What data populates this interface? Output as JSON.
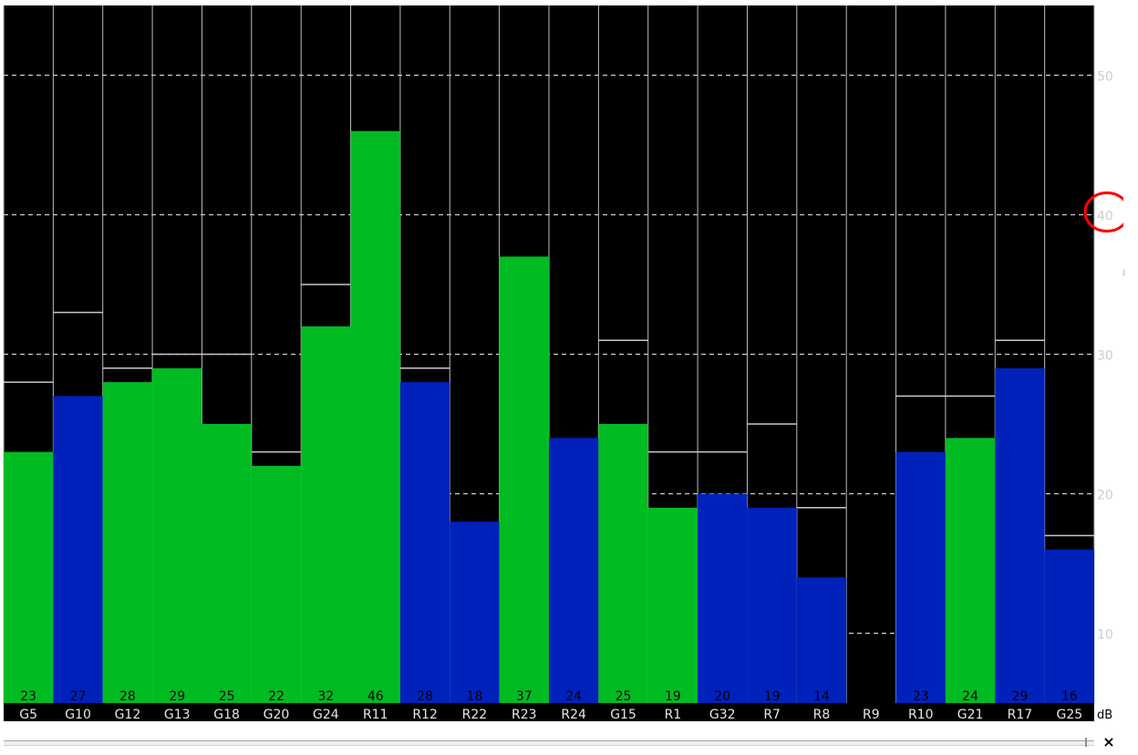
{
  "chart_data": {
    "type": "bar",
    "categories": [
      "G5",
      "G10",
      "G12",
      "G13",
      "G18",
      "G20",
      "G24",
      "R11",
      "R12",
      "R22",
      "R23",
      "R24",
      "G15",
      "R1",
      "G32",
      "R7",
      "R8",
      "R9",
      "R10",
      "G21",
      "R17",
      "G25"
    ],
    "values": [
      23,
      27,
      28,
      29,
      25,
      22,
      32,
      46,
      28,
      18,
      37,
      24,
      25,
      19,
      20,
      19,
      14,
      0,
      23,
      24,
      29,
      16
    ],
    "value_labels": [
      "23",
      "27",
      "28",
      "29",
      "25",
      "22",
      "32",
      "46",
      "28",
      "18",
      "37",
      "24",
      "25",
      "19",
      "20",
      "19",
      "14",
      "",
      "23",
      "24",
      "29",
      "16"
    ],
    "peak_values": [
      28,
      33,
      29,
      30,
      30,
      23,
      35,
      46,
      29,
      18,
      37,
      24,
      31,
      23,
      23,
      25,
      19,
      0,
      27,
      27,
      31,
      17
    ],
    "bar_colors": [
      "#00bb22",
      "#0022bb",
      "#00bb22",
      "#00bb22",
      "#00bb22",
      "#00bb22",
      "#00bb22",
      "#00bb22",
      "#0022bb",
      "#0022bb",
      "#00bb22",
      "#0022bb",
      "#00bb22",
      "#00bb22",
      "#0022bb",
      "#0022bb",
      "#0022bb",
      "#0022bb",
      "#0022bb",
      "#00bb22",
      "#0022bb",
      "#0022bb"
    ],
    "y_ticks": [
      10,
      20,
      30,
      40,
      50
    ],
    "y_tick_labels": [
      "10",
      "20",
      "30",
      "40",
      "50"
    ],
    "ylim": [
      5,
      55
    ],
    "unit_label": "dB",
    "grid": true,
    "background_color": "#000000",
    "highlight_tick": "40",
    "highlight_color": "#ff0000"
  },
  "window": {
    "close_glyph": "×"
  }
}
